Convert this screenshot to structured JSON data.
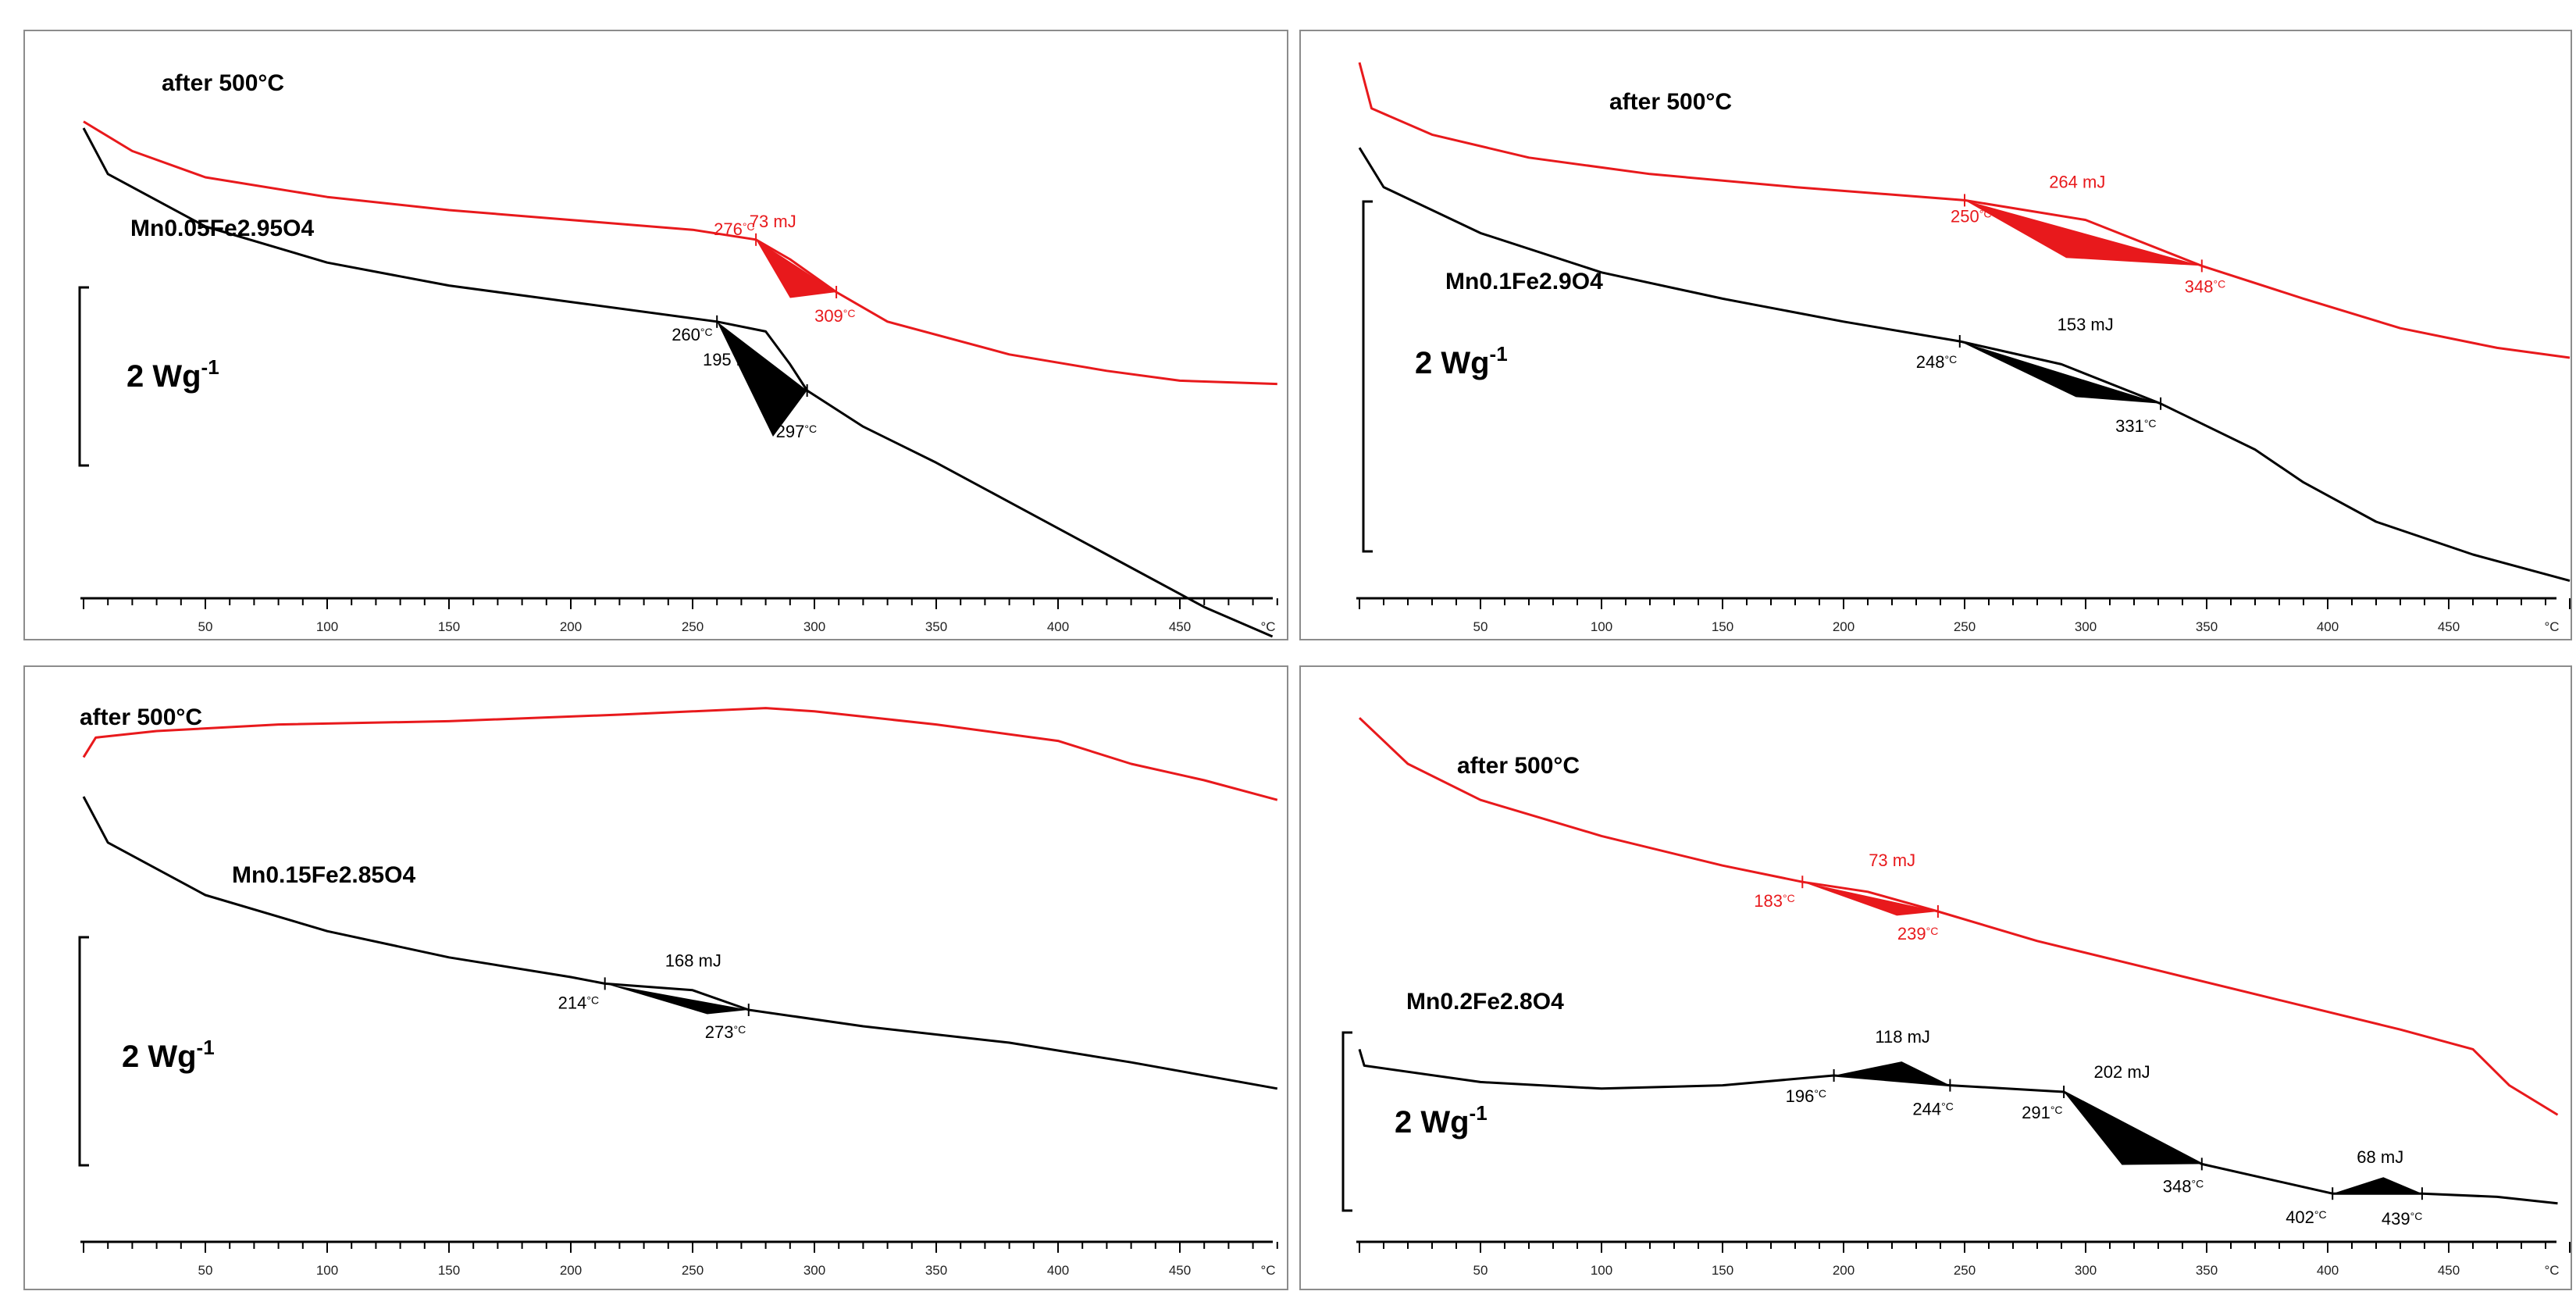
{
  "chart_data": [
    {
      "type": "line",
      "xlabel": "°C",
      "x_ticks": [
        50,
        100,
        150,
        200,
        250,
        300,
        350,
        400,
        450
      ],
      "xlim": [
        0,
        500
      ],
      "scale_bar": {
        "value": "2",
        "unit": "Wg",
        "exp": "-1"
      },
      "colors": {
        "after": "#e8191c",
        "sample": "#000000"
      },
      "series": [
        {
          "name": "after 500°C",
          "color": "#e8191c",
          "points": [
            [
              0,
              0.9
            ],
            [
              20,
              1.35
            ],
            [
              50,
              1.75
            ],
            [
              100,
              2.05
            ],
            [
              150,
              2.25
            ],
            [
              200,
              2.4
            ],
            [
              250,
              2.55
            ],
            [
              276,
              2.7
            ],
            [
              290,
              3.0
            ],
            [
              309,
              3.5
            ],
            [
              330,
              3.95
            ],
            [
              380,
              4.45
            ],
            [
              420,
              4.7
            ],
            [
              450,
              4.85
            ],
            [
              490,
              4.9
            ]
          ]
        },
        {
          "name": "Mn0.05Fe2.95O4",
          "color": "#000000",
          "points": [
            [
              0,
              1.0
            ],
            [
              10,
              1.7
            ],
            [
              50,
              2.5
            ],
            [
              100,
              3.05
            ],
            [
              150,
              3.4
            ],
            [
              200,
              3.65
            ],
            [
              260,
              3.95
            ],
            [
              280,
              4.1
            ],
            [
              290,
              4.6
            ],
            [
              297,
              5.0
            ],
            [
              320,
              5.55
            ],
            [
              350,
              6.1
            ],
            [
              380,
              6.7
            ],
            [
              420,
              7.5
            ],
            [
              460,
              8.3
            ],
            [
              488,
              8.75
            ]
          ]
        }
      ],
      "peaks": [
        {
          "series": "after 500°C",
          "start_label": "276",
          "end_label": "309",
          "energy_label": "73 mJ",
          "start_x": 276,
          "end_x": 309,
          "peak_x": 290,
          "depth": 0.55
        },
        {
          "series": "Mn0.05Fe2.95O4",
          "start_label": "260",
          "end_label": "297",
          "energy_label": "195 mJ",
          "start_x": 260,
          "end_x": 297,
          "peak_x": 283,
          "depth": 1.1
        }
      ],
      "labels": {
        "after": "after 500°C",
        "sample": "Mn0.05Fe2.95O4"
      }
    },
    {
      "type": "line",
      "xlabel": "°C",
      "x_ticks": [
        50,
        100,
        150,
        200,
        250,
        300,
        350,
        400,
        450
      ],
      "xlim": [
        0,
        500
      ],
      "scale_bar": {
        "value": "2",
        "unit": "Wg",
        "exp": "-1"
      },
      "colors": {
        "after": "#e8191c",
        "sample": "#000000"
      },
      "series": [
        {
          "name": "after 500°C",
          "color": "#e8191c",
          "points": [
            [
              0,
              0.0
            ],
            [
              5,
              0.7
            ],
            [
              30,
              1.1
            ],
            [
              70,
              1.45
            ],
            [
              120,
              1.7
            ],
            [
              180,
              1.9
            ],
            [
              250,
              2.1
            ],
            [
              300,
              2.4
            ],
            [
              348,
              3.1
            ],
            [
              390,
              3.6
            ],
            [
              430,
              4.05
            ],
            [
              470,
              4.35
            ],
            [
              500,
              4.5
            ]
          ]
        },
        {
          "name": "Mn0.1Fe2.9O4",
          "color": "#000000",
          "points": [
            [
              0,
              1.3
            ],
            [
              10,
              1.9
            ],
            [
              50,
              2.6
            ],
            [
              100,
              3.2
            ],
            [
              150,
              3.6
            ],
            [
              200,
              3.95
            ],
            [
              248,
              4.25
            ],
            [
              290,
              4.6
            ],
            [
              331,
              5.2
            ],
            [
              370,
              5.9
            ],
            [
              390,
              6.4
            ],
            [
              420,
              7.0
            ],
            [
              460,
              7.5
            ],
            [
              500,
              7.9
            ]
          ]
        }
      ],
      "peaks": [
        {
          "series": "after 500°C",
          "start_label": "250",
          "end_label": "348",
          "energy_label": "264 mJ",
          "start_x": 250,
          "end_x": 348,
          "peak_x": 292,
          "depth": 0.45
        },
        {
          "series": "Mn0.1Fe2.9O4",
          "start_label": "248",
          "end_label": "331",
          "energy_label": "153 mJ",
          "start_x": 248,
          "end_x": 331,
          "peak_x": 296,
          "depth": 0.3
        }
      ],
      "labels": {
        "after": "after 500°C",
        "sample": "Mn0.1Fe2.9O4"
      }
    },
    {
      "type": "line",
      "xlabel": "°C",
      "x_ticks": [
        50,
        100,
        150,
        200,
        250,
        300,
        350,
        400,
        450
      ],
      "xlim": [
        0,
        500
      ],
      "scale_bar": {
        "value": "2",
        "unit": "Wg",
        "exp": "-1"
      },
      "colors": {
        "after": "#e8191c",
        "sample": "#000000"
      },
      "series": [
        {
          "name": "after 500°C",
          "color": "#e8191c",
          "points": [
            [
              0,
              0.9
            ],
            [
              5,
              0.6
            ],
            [
              30,
              0.5
            ],
            [
              80,
              0.4
            ],
            [
              150,
              0.35
            ],
            [
              220,
              0.25
            ],
            [
              280,
              0.15
            ],
            [
              300,
              0.2
            ],
            [
              350,
              0.4
            ],
            [
              400,
              0.65
            ],
            [
              430,
              1.0
            ],
            [
              460,
              1.25
            ],
            [
              490,
              1.55
            ]
          ]
        },
        {
          "name": "Mn0.15Fe2.85O4",
          "color": "#000000",
          "points": [
            [
              0,
              1.5
            ],
            [
              10,
              2.2
            ],
            [
              50,
              3.0
            ],
            [
              100,
              3.55
            ],
            [
              150,
              3.95
            ],
            [
              200,
              4.25
            ],
            [
              214,
              4.35
            ],
            [
              250,
              4.45
            ],
            [
              273,
              4.75
            ],
            [
              320,
              5.0
            ],
            [
              380,
              5.25
            ],
            [
              430,
              5.55
            ],
            [
              490,
              5.95
            ]
          ]
        }
      ],
      "peaks": [
        {
          "series": "Mn0.15Fe2.85O4",
          "start_label": "214",
          "end_label": "273",
          "energy_label": "168 mJ",
          "start_x": 214,
          "end_x": 273,
          "peak_x": 256,
          "depth": 0.18
        }
      ],
      "labels": {
        "after": "after 500°C",
        "sample": "Mn0.15Fe2.85O4"
      }
    },
    {
      "type": "line",
      "xlabel": "°C",
      "x_ticks": [
        50,
        100,
        150,
        200,
        250,
        300,
        350,
        400,
        450
      ],
      "xlim": [
        0,
        500
      ],
      "scale_bar": {
        "value": "2",
        "unit": "Wg",
        "exp": "-1"
      },
      "colors": {
        "after": "#e8191c",
        "sample": "#000000"
      },
      "series": [
        {
          "name": "after 500°C",
          "color": "#e8191c",
          "points": [
            [
              0,
              0.3
            ],
            [
              20,
              1.0
            ],
            [
              50,
              1.55
            ],
            [
              100,
              2.1
            ],
            [
              150,
              2.55
            ],
            [
              183,
              2.8
            ],
            [
              210,
              2.95
            ],
            [
              239,
              3.25
            ],
            [
              280,
              3.7
            ],
            [
              330,
              4.15
            ],
            [
              380,
              4.6
            ],
            [
              430,
              5.05
            ],
            [
              460,
              5.35
            ],
            [
              475,
              5.9
            ],
            [
              495,
              6.35
            ]
          ]
        },
        {
          "name": "Mn0.2Fe2.8O4",
          "color": "#000000",
          "points": [
            [
              0,
              5.35
            ],
            [
              2,
              5.6
            ],
            [
              50,
              5.85
            ],
            [
              100,
              5.95
            ],
            [
              150,
              5.9
            ],
            [
              196,
              5.75
            ],
            [
              244,
              5.9
            ],
            [
              291,
              6.0
            ],
            [
              348,
              7.1
            ],
            [
              402,
              7.55
            ],
            [
              439,
              7.55
            ],
            [
              470,
              7.6
            ],
            [
              495,
              7.7
            ]
          ]
        }
      ],
      "peaks": [
        {
          "series": "after 500°C",
          "start_label": "183",
          "end_label": "239",
          "energy_label": "73 mJ",
          "start_x": 183,
          "end_x": 239,
          "peak_x": 222,
          "depth": 0.2
        },
        {
          "series": "Mn0.2Fe2.8O4",
          "start_label": "196",
          "end_label": "244",
          "energy_label": "118 mJ",
          "start_x": 196,
          "end_x": 244,
          "peak_x": 224,
          "depth": -0.3
        },
        {
          "series": "Mn0.2Fe2.8O4",
          "start_label": "291",
          "end_label": "348",
          "energy_label": "202 mJ",
          "start_x": 291,
          "end_x": 348,
          "peak_x": 315,
          "depth": 0.65
        },
        {
          "series": "Mn0.2Fe2.8O4",
          "start_label": "402",
          "end_label": "439",
          "energy_label": "68 mJ",
          "start_x": 402,
          "end_x": 439,
          "peak_x": 423,
          "depth": -0.25
        }
      ],
      "labels": {
        "after": "after 500°C",
        "sample": "Mn0.2Fe2.8O4"
      }
    }
  ]
}
